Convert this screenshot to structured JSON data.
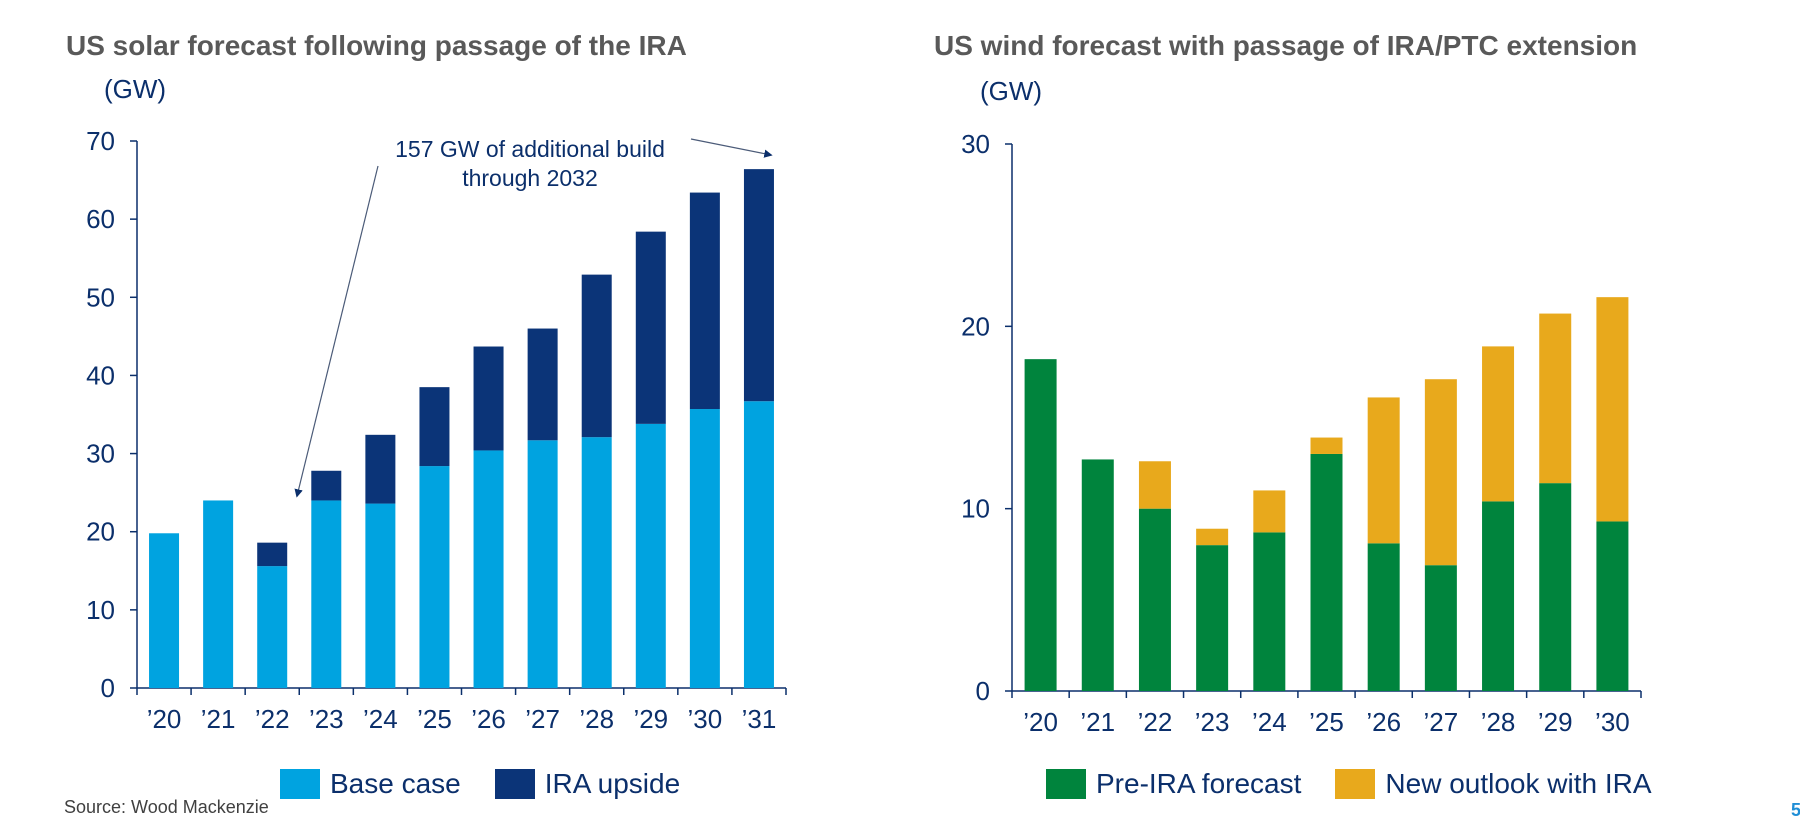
{
  "source": "Source: Wood Mackenzie",
  "page_number": "5",
  "chart_data": [
    {
      "type": "bar",
      "stacked": true,
      "title": "US solar forecast following passage of the IRA",
      "ylabel": "(GW)",
      "xlabel": "",
      "ylim": [
        0,
        70
      ],
      "yticks": [
        0,
        10,
        20,
        30,
        40,
        50,
        60,
        70
      ],
      "categories": [
        "’20",
        "’21",
        "’22",
        "’23",
        "’24",
        "’25",
        "’26",
        "’27",
        "’28",
        "’29",
        "’30",
        "’31"
      ],
      "series": [
        {
          "name": "Base case",
          "color": "#00a3e0",
          "values": [
            19.8,
            24,
            15.6,
            24,
            23.6,
            28.4,
            30.4,
            31.7,
            32.1,
            33.8,
            35.7,
            36.7
          ]
        },
        {
          "name": "IRA upside",
          "color": "#0b3478",
          "values": [
            0,
            0,
            3,
            3.8,
            8.8,
            10.1,
            13.3,
            14.3,
            20.8,
            24.6,
            27.7,
            29.7
          ]
        }
      ],
      "annotation": "157 GW of additional build through 2032",
      "legend": "bottom",
      "grid": false
    },
    {
      "type": "bar",
      "stacked": true,
      "title": "US wind forecast with passage of IRA/PTC extension",
      "ylabel": "(GW)",
      "xlabel": "",
      "ylim": [
        0,
        30
      ],
      "yticks": [
        0,
        10,
        20,
        30
      ],
      "categories": [
        "’20",
        "’21",
        "’22",
        "’23",
        "’24",
        "’25",
        "’26",
        "’27",
        "’28",
        "’29",
        "’30"
      ],
      "series": [
        {
          "name": "Pre-IRA forecast",
          "color": "#00843d",
          "values": [
            18.2,
            12.7,
            10,
            8,
            8.7,
            13,
            8.1,
            6.9,
            10.4,
            11.4,
            9.3
          ]
        },
        {
          "name": "New outlook with IRA",
          "color": "#e8a91c",
          "values": [
            0,
            0,
            2.6,
            0.9,
            2.3,
            0.9,
            8,
            10.2,
            8.5,
            9.3,
            12.3
          ]
        }
      ],
      "legend": "bottom",
      "grid": false
    }
  ]
}
